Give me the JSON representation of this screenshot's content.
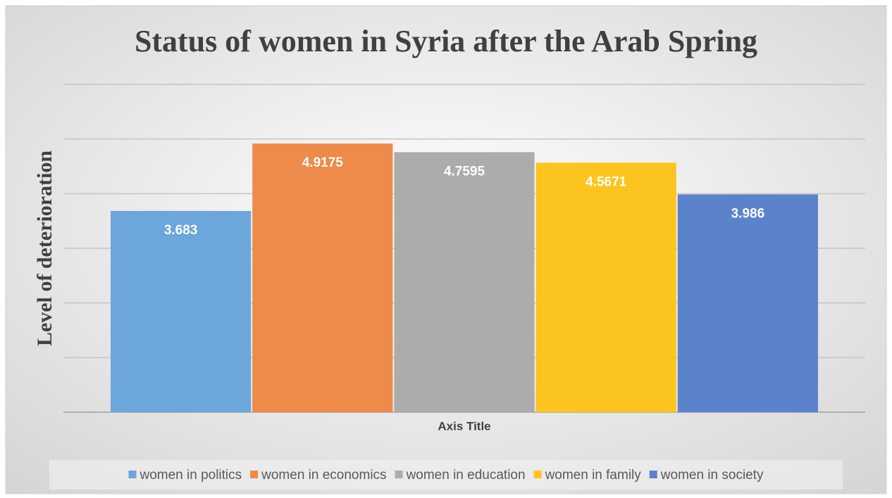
{
  "chart_data": {
    "type": "bar",
    "title": "Status of women in Syria after the Arab Spring",
    "x_label": "Axis Title",
    "y_label": "Level of deterioration",
    "categories": [
      null
    ],
    "series": [
      {
        "name": "women in politics",
        "color": "#6ca6da",
        "values": [
          3.683
        ]
      },
      {
        "name": "women in economics",
        "color": "#ee8a4a",
        "values": [
          4.9175
        ]
      },
      {
        "name": "women in education",
        "color": "#acacac",
        "values": [
          4.7595
        ]
      },
      {
        "name": "women in family",
        "color": "#fcc41e",
        "values": [
          4.5671
        ]
      },
      {
        "name": "women in society",
        "color": "#5b83cc",
        "values": [
          3.986
        ]
      }
    ],
    "ylim": [
      0,
      6
    ],
    "yticks": [
      0,
      1,
      2,
      3,
      4,
      5,
      6
    ],
    "grid": true,
    "legend": "bottom"
  }
}
